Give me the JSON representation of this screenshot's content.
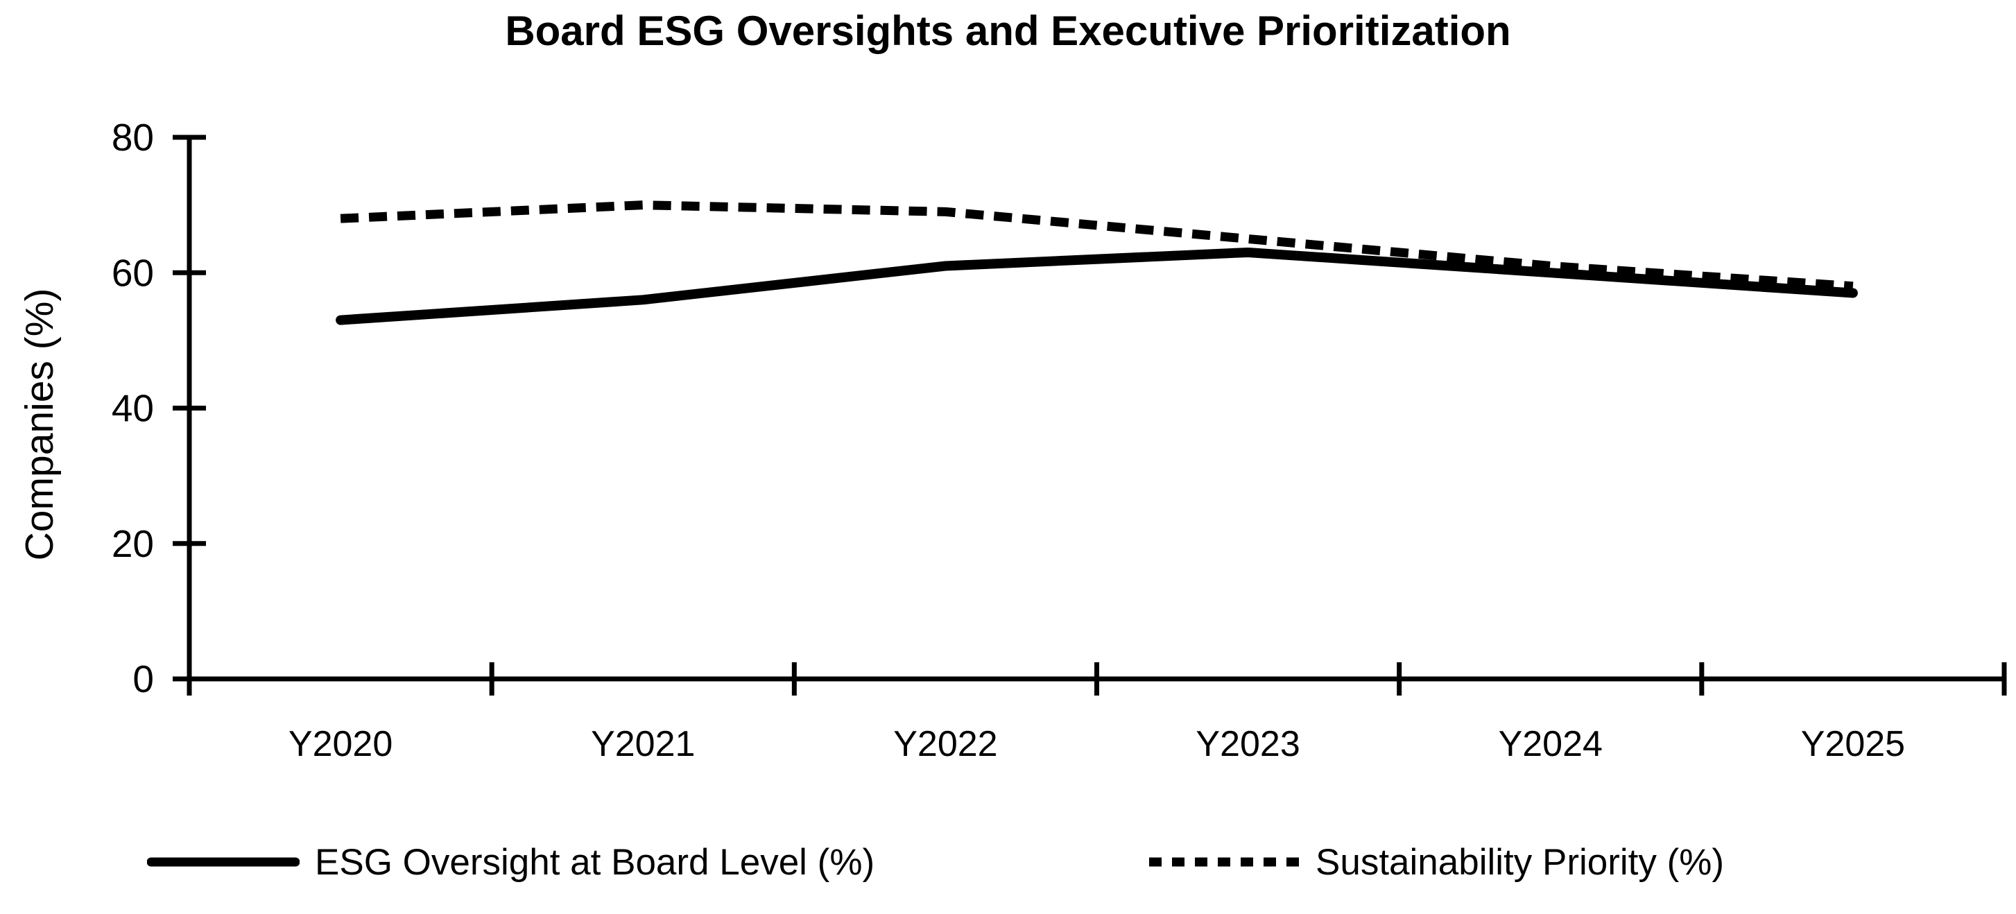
{
  "chart": {
    "title": "Board ESG Oversights and Executive Prioritization"
  },
  "chart_data": {
    "type": "line",
    "title": "Board ESG Oversights and Executive Prioritization",
    "xlabel": "",
    "ylabel": "Companies (%)",
    "categories": [
      "Y2020",
      "Y2021",
      "Y2022",
      "Y2023",
      "Y2024",
      "Y2025"
    ],
    "series": [
      {
        "name": "ESG Oversight at Board Level (%)",
        "line_style": "solid",
        "values": [
          53,
          56,
          61,
          63,
          60,
          57
        ]
      },
      {
        "name": "Sustainability Priority (%)",
        "line_style": "dashed",
        "values": [
          68,
          70,
          69,
          65,
          61,
          58
        ]
      }
    ],
    "ylim": [
      0,
      80
    ],
    "yticks": [
      0,
      20,
      40,
      60,
      80
    ],
    "grid": false,
    "legend_position": "bottom",
    "colors": {
      "line": "#000000",
      "text": "#000000",
      "background": "#FFFFFF"
    }
  }
}
